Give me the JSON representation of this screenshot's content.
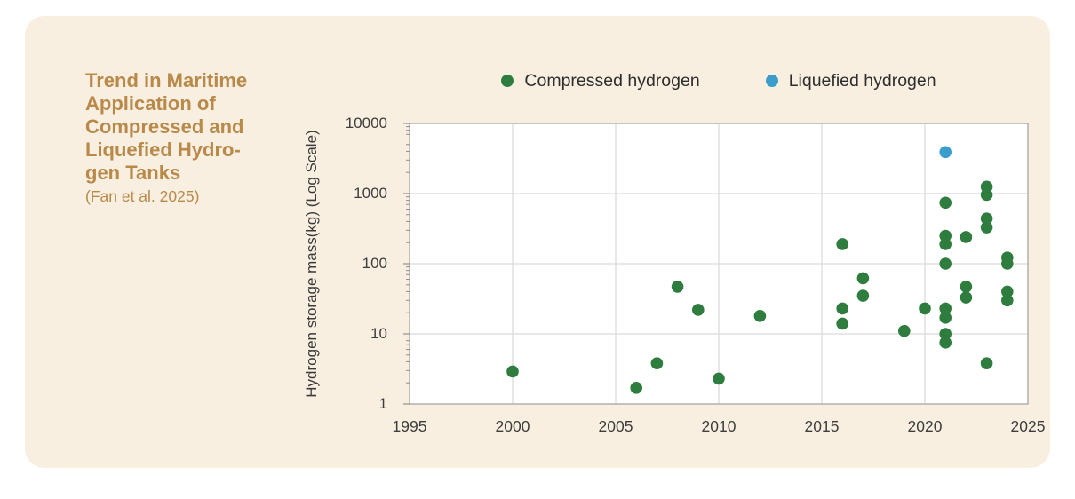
{
  "title": {
    "text": "Trend in Maritime\nApplication of\nCompressed and\nLiquefied Hydro-\ngen Tanks",
    "subtitle": "(Fan et al. 2025)"
  },
  "colors": {
    "page_bg": "#ffffff",
    "card_bg": "#f9efe1",
    "title_text": "#b9894a",
    "plot_bg": "#ffffff",
    "gridline": "#dbdbdb",
    "plot_border": "#b2afa9",
    "minor_tick": "#8f8f8f",
    "tick_text": "#3e3e3e",
    "legend_text": "#2d2d2d",
    "compressed_green": "#2f7d3e",
    "liquefied_blue": "#3a9dcb"
  },
  "chart_data": {
    "type": "scatter",
    "title": "Trend in Maritime Application of Compressed and Liquefied Hydrogen Tanks",
    "source": "(Fan et al. 2025)",
    "xlabel": "",
    "ylabel": "Hydrogen storage mass(kg) (Log Scale)",
    "x_scale": "linear",
    "y_scale": "log",
    "xlim": [
      1995,
      2025
    ],
    "ylim": [
      1,
      10000
    ],
    "x_ticks": [
      "1995",
      "2000",
      "2005",
      "2010",
      "2015",
      "2020",
      "2025"
    ],
    "y_ticks": [
      "1",
      "10",
      "100",
      "1000",
      "10000"
    ],
    "grid": true,
    "legend_position": "top",
    "series": [
      {
        "name": "Compressed hydrogen",
        "color": "#2f7d3e",
        "points": [
          [
            2000,
            2.9
          ],
          [
            2006,
            1.7
          ],
          [
            2007,
            3.8
          ],
          [
            2008,
            47
          ],
          [
            2009,
            22
          ],
          [
            2010,
            2.3
          ],
          [
            2012,
            18
          ],
          [
            2016,
            190
          ],
          [
            2016,
            23
          ],
          [
            2016,
            14
          ],
          [
            2017,
            62
          ],
          [
            2017,
            35
          ],
          [
            2019,
            11
          ],
          [
            2020,
            23
          ],
          [
            2021,
            740
          ],
          [
            2021,
            250
          ],
          [
            2021,
            190
          ],
          [
            2021,
            100
          ],
          [
            2021,
            23
          ],
          [
            2021,
            17
          ],
          [
            2021,
            10
          ],
          [
            2021,
            7.5
          ],
          [
            2022,
            240
          ],
          [
            2022,
            47
          ],
          [
            2022,
            33
          ],
          [
            2023,
            1250
          ],
          [
            2023,
            960
          ],
          [
            2023,
            440
          ],
          [
            2023,
            330
          ],
          [
            2023,
            3.8
          ],
          [
            2024,
            122
          ],
          [
            2024,
            100
          ],
          [
            2024,
            40
          ],
          [
            2024,
            30
          ]
        ]
      },
      {
        "name": "Liquefied hydrogen",
        "color": "#3a9dcb",
        "points": [
          [
            2021,
            3900
          ]
        ]
      }
    ]
  }
}
